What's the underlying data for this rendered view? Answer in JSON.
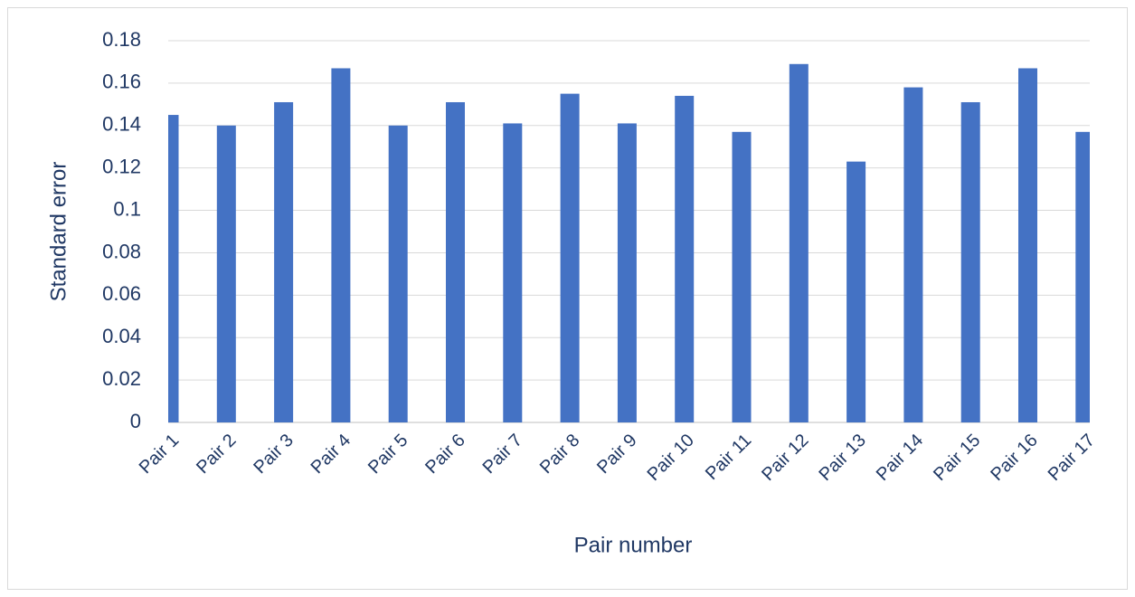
{
  "chart_data": {
    "type": "bar",
    "x_label": "Pair number",
    "y_label": "Standard error",
    "categories": [
      "Pair 1",
      "Pair 2",
      "Pair 3",
      "Pair 4",
      "Pair 5",
      "Pair 6",
      "Pair 7",
      "Pair 8",
      "Pair 9",
      "Pair 10",
      "Pair 11",
      "Pair 12",
      "Pair 13",
      "Pair 14",
      "Pair 15",
      "Pair 16",
      "Pair 17"
    ],
    "values": [
      0.145,
      0.14,
      0.151,
      0.167,
      0.14,
      0.151,
      0.141,
      0.155,
      0.141,
      0.154,
      0.137,
      0.169,
      0.123,
      0.158,
      0.151,
      0.167,
      0.137
    ],
    "color": "#4472c4",
    "ylim": [
      0,
      0.18
    ],
    "yticks": [
      0,
      0.02,
      0.04,
      0.06,
      0.08,
      0.1,
      0.12,
      0.14,
      0.16,
      0.18
    ],
    "grid": true
  }
}
